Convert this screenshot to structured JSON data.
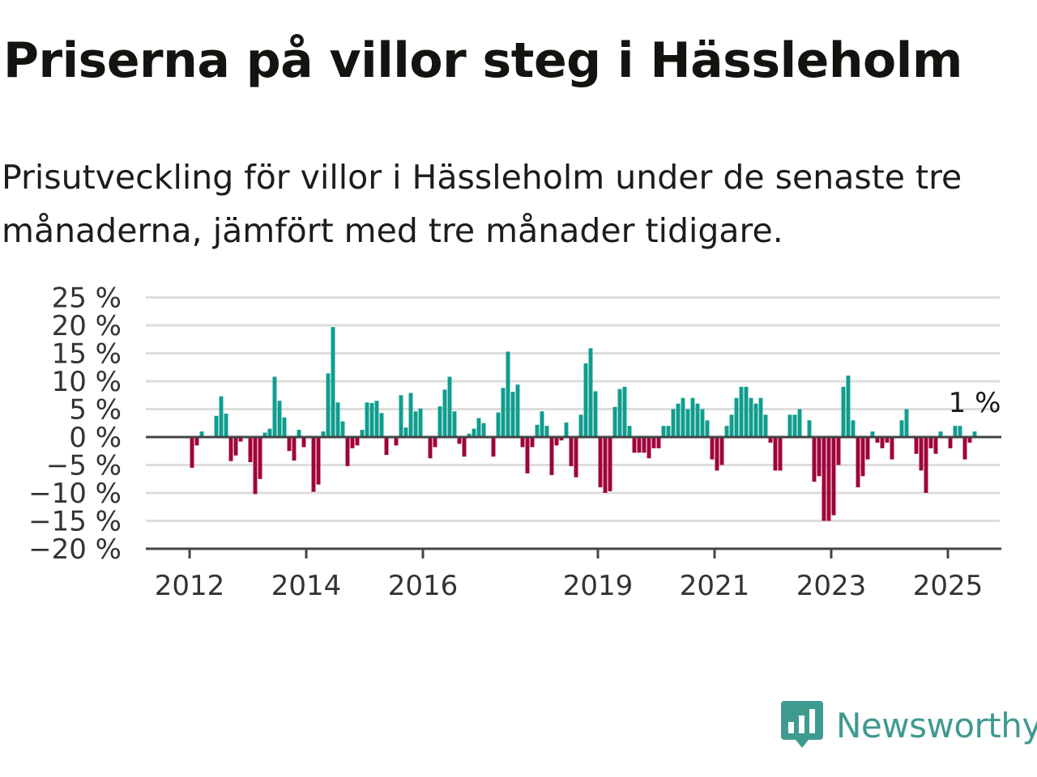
{
  "header": {
    "title": "Priserna på villor steg i Hässleholm",
    "subtitle": "Prisutveckling för villor i Hässleholm under de senaste tre månaderna, jämfört med tre månader tidigare."
  },
  "brand": {
    "name": "Newsworthy",
    "logo_icon": "bar-chart-speech-bubble-icon",
    "color": "#3f9a90"
  },
  "colors": {
    "positive": "#0f9d8e",
    "negative": "#a0003b",
    "grid": "#dddddd",
    "zero_line": "#444444"
  },
  "chart_data": {
    "type": "bar",
    "title": "Priserna på villor steg i Hässleholm",
    "subtitle": "Prisutveckling för villor i Hässleholm under de senaste tre månaderna, jämfört med tre månader tidigare.",
    "xlabel": "",
    "ylabel": "",
    "unit": "%",
    "frequency": "monthly",
    "start": "2012-01",
    "end": "2025-05",
    "xlim": [
      "2011-04",
      "2025-12"
    ],
    "ylim": [
      -20,
      25
    ],
    "yticks": [
      25,
      20,
      15,
      10,
      5,
      0,
      -5,
      -10,
      -15,
      -20
    ],
    "ytick_labels": [
      "25 %",
      "20 %",
      "15 %",
      "10 %",
      "5 %",
      "0 %",
      "−5 %",
      "−10 %",
      "−15 %",
      "−20 %"
    ],
    "xticks": [
      "2012",
      "2014",
      "2016",
      "2019",
      "2021",
      "2023",
      "2025"
    ],
    "grid": true,
    "legend": false,
    "last_value_label": "1 %",
    "values": [
      -5.5,
      -1.5,
      1,
      0,
      0,
      3.8,
      7.3,
      4.2,
      -4.3,
      -3.3,
      -0.8,
      0,
      -4.5,
      -10.2,
      -7.5,
      0.8,
      1.5,
      10.8,
      6.5,
      3.5,
      -2.5,
      -4.2,
      1.3,
      -1.8,
      0,
      -9.8,
      -8.5,
      1,
      11.4,
      19.7,
      6.2,
      2.8,
      -5.2,
      -2,
      -1.5,
      1.3,
      6.2,
      6.1,
      6.5,
      4.3,
      -3.2,
      0,
      -1.5,
      7.5,
      1.7,
      7.9,
      4.6,
      5.1,
      0,
      -3.8,
      -1.8,
      5.5,
      8.5,
      10.8,
      4.6,
      -1.2,
      -3.5,
      0.6,
      1.5,
      3.4,
      2.5,
      0,
      -3.5,
      4.4,
      8.8,
      15.3,
      8.1,
      9.4,
      -1.8,
      -6.5,
      -1.8,
      2.2,
      4.6,
      2,
      -6.8,
      -1.5,
      -0.6,
      2.6,
      -5.2,
      -7.2,
      4,
      13.2,
      15.9,
      8.2,
      -9,
      -10,
      -9.7,
      5.4,
      8.6,
      9,
      2,
      -2.8,
      -2.8,
      -2.8,
      -3.8,
      -2,
      -2,
      2,
      2,
      5,
      6,
      7,
      5,
      7,
      6,
      5,
      3,
      -4,
      -6,
      -5,
      2,
      4,
      7,
      9,
      9,
      7,
      6,
      7,
      4,
      -1,
      -6,
      -6,
      0,
      4,
      4,
      5,
      0,
      3,
      -8,
      -7,
      -15,
      -15,
      -14,
      -5,
      9,
      11,
      3,
      -9,
      -7,
      -4,
      1,
      -1,
      -2,
      -1,
      -4,
      0,
      3,
      5,
      0,
      -3,
      -6,
      -10,
      -2,
      -3,
      1,
      0,
      -2,
      2,
      2,
      -4,
      -1,
      1
    ]
  }
}
